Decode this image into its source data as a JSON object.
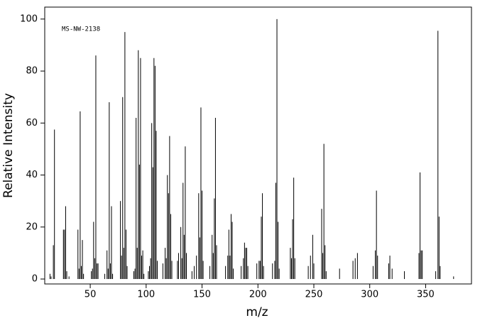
{
  "chart_data": {
    "type": "stem",
    "annotation": "MS-NW-2138",
    "xlabel": "m/z",
    "ylabel": "Relative Intensity",
    "color": "#000000",
    "xlim": [
      9.3,
      391
    ],
    "ylim": [
      -1.9,
      104.6
    ],
    "xticks": [
      50,
      100,
      150,
      200,
      250,
      300,
      350
    ],
    "yticks": [
      0,
      20,
      40,
      60,
      80,
      100
    ],
    "x": [
      14,
      15,
      17,
      18,
      26,
      27,
      28,
      29,
      31,
      39,
      40,
      41,
      42,
      43,
      44,
      51,
      52,
      53,
      54,
      55,
      56,
      57,
      63,
      65,
      66,
      67,
      68,
      69,
      70,
      77,
      78,
      79,
      80,
      81,
      82,
      83,
      89,
      90,
      91,
      92,
      93,
      94,
      95,
      96,
      97,
      98,
      102,
      103,
      104,
      105,
      106,
      107,
      108,
      109,
      110,
      115,
      117,
      118,
      119,
      120,
      121,
      122,
      123,
      128,
      129,
      131,
      132,
      133,
      134,
      135,
      136,
      141,
      143,
      145,
      147,
      148,
      149,
      150,
      151,
      157,
      159,
      160,
      161,
      162,
      163,
      171,
      173,
      174,
      175,
      176,
      177,
      178,
      185,
      187,
      188,
      189,
      190,
      191,
      199,
      201,
      202,
      203,
      204,
      205,
      213,
      215,
      216,
      217,
      218,
      219,
      229,
      230,
      231,
      232,
      233,
      245,
      247,
      249,
      250,
      257,
      258,
      259,
      260,
      261,
      273,
      285,
      287,
      289,
      303,
      305,
      306,
      307,
      317,
      318,
      320,
      331,
      344,
      345,
      346,
      347,
      359,
      361,
      362,
      363,
      375
    ],
    "values": [
      2,
      1,
      13,
      57.5,
      19,
      19,
      28,
      3,
      1,
      19,
      4,
      64.5,
      5,
      15,
      2,
      3,
      4,
      22,
      8,
      86,
      6,
      6,
      2,
      11,
      4,
      68,
      6,
      28,
      2,
      30,
      9,
      70,
      12,
      95,
      19,
      5,
      3,
      4,
      62,
      12,
      88,
      44,
      85,
      9,
      11,
      2,
      3,
      5,
      8,
      60,
      43,
      85,
      82,
      57,
      7,
      6,
      12,
      8,
      40,
      33,
      55,
      25,
      7,
      7,
      10,
      20,
      8,
      37,
      17,
      51,
      10,
      3,
      5,
      9,
      33,
      16,
      66,
      34,
      7,
      5,
      17,
      10,
      31,
      62,
      13,
      5,
      9,
      19,
      9,
      25,
      22,
      4,
      5,
      8,
      14,
      12,
      12,
      5,
      6,
      7,
      7,
      24,
      33,
      5,
      6,
      7,
      37,
      100,
      22,
      4,
      12,
      8,
      23,
      39,
      8,
      5,
      9,
      17,
      6,
      27,
      10,
      52,
      13,
      3,
      4,
      7,
      8,
      10,
      5,
      11,
      34,
      9,
      6,
      9,
      4,
      3,
      10,
      41,
      11,
      11,
      3,
      95.5,
      24,
      5,
      1
    ]
  }
}
